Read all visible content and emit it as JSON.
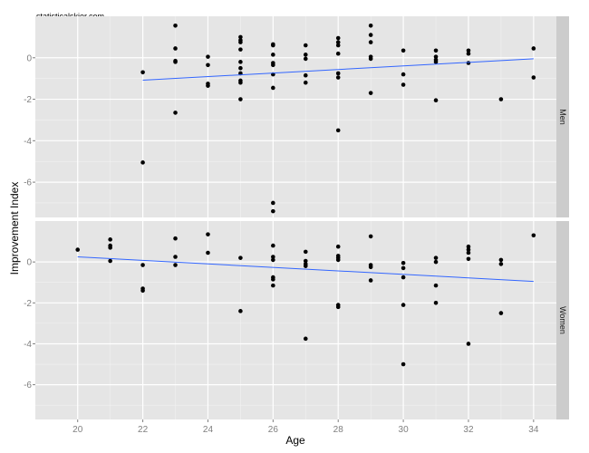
{
  "chart_data": {
    "type": "scatter",
    "credit": "statisticalskier.com",
    "xlabel": "Age",
    "ylabel": "Improvement Index",
    "xlim": [
      18.7,
      34.7
    ],
    "ylim": [
      -7.7,
      2.0
    ],
    "x_ticks": [
      20,
      22,
      24,
      26,
      28,
      30,
      32,
      34
    ],
    "y_ticks": [
      0,
      -2,
      -4,
      -6
    ],
    "grid": true,
    "colors": {
      "panel_bg": "#e5e5e5",
      "grid_major": "#ffffff",
      "grid_minor": "#f2f2f2",
      "strip_bg": "#cccccc",
      "point": "#000000",
      "trend_line": "#3366ff"
    },
    "panels": [
      {
        "label": "Men",
        "points": [
          [
            22,
            -0.7
          ],
          [
            22,
            -5.05
          ],
          [
            23,
            1.55
          ],
          [
            23,
            0.45
          ],
          [
            23,
            -0.15
          ],
          [
            23,
            -0.2
          ],
          [
            23,
            -2.65
          ],
          [
            24,
            0.05
          ],
          [
            24,
            -0.35
          ],
          [
            24,
            -1.25
          ],
          [
            24,
            -1.35
          ],
          [
            25,
            1.0
          ],
          [
            25,
            0.85
          ],
          [
            25,
            0.75
          ],
          [
            25,
            0.4
          ],
          [
            25,
            -0.2
          ],
          [
            25,
            -0.5
          ],
          [
            25,
            -0.75
          ],
          [
            25,
            -1.1
          ],
          [
            25,
            -1.2
          ],
          [
            25,
            -2.0
          ],
          [
            26,
            0.65
          ],
          [
            26,
            0.6
          ],
          [
            26,
            0.15
          ],
          [
            26,
            -0.25
          ],
          [
            26,
            -0.35
          ],
          [
            26,
            -0.8
          ],
          [
            26,
            -1.45
          ],
          [
            26,
            -7.0
          ],
          [
            26,
            -7.4
          ],
          [
            27,
            0.6
          ],
          [
            27,
            0.15
          ],
          [
            27,
            -0.05
          ],
          [
            27,
            -0.85
          ],
          [
            27,
            -1.2
          ],
          [
            28,
            0.95
          ],
          [
            28,
            0.75
          ],
          [
            28,
            0.6
          ],
          [
            28,
            0.2
          ],
          [
            28,
            -0.75
          ],
          [
            28,
            -0.95
          ],
          [
            28,
            -3.5
          ],
          [
            29,
            1.55
          ],
          [
            29,
            1.1
          ],
          [
            29,
            0.75
          ],
          [
            29,
            0.05
          ],
          [
            29,
            -0.05
          ],
          [
            29,
            -1.7
          ],
          [
            30,
            0.35
          ],
          [
            30,
            -0.8
          ],
          [
            30,
            -1.3
          ],
          [
            31,
            0.35
          ],
          [
            31,
            0.05
          ],
          [
            31,
            -0.1
          ],
          [
            31,
            -0.2
          ],
          [
            31,
            -2.05
          ],
          [
            32,
            0.35
          ],
          [
            32,
            0.2
          ],
          [
            32,
            -0.25
          ],
          [
            33,
            -2.0
          ],
          [
            34,
            0.45
          ],
          [
            34,
            -0.95
          ]
        ],
        "trend_line": {
          "x": [
            22,
            34
          ],
          "y": [
            -1.08,
            -0.05
          ]
        }
      },
      {
        "label": "Women",
        "points": [
          [
            20,
            0.6
          ],
          [
            21,
            1.1
          ],
          [
            21,
            0.8
          ],
          [
            21,
            0.7
          ],
          [
            21,
            0.05
          ],
          [
            22,
            -0.15
          ],
          [
            22,
            -1.3
          ],
          [
            22,
            -1.4
          ],
          [
            23,
            1.15
          ],
          [
            23,
            0.25
          ],
          [
            23,
            -0.15
          ],
          [
            24,
            1.35
          ],
          [
            24,
            0.45
          ],
          [
            25,
            0.2
          ],
          [
            25,
            -2.4
          ],
          [
            26,
            0.8
          ],
          [
            26,
            0.25
          ],
          [
            26,
            0.1
          ],
          [
            26,
            -0.75
          ],
          [
            26,
            -0.85
          ],
          [
            26,
            -1.15
          ],
          [
            27,
            0.5
          ],
          [
            27,
            0.05
          ],
          [
            27,
            -0.1
          ],
          [
            27,
            -0.2
          ],
          [
            27,
            -3.75
          ],
          [
            28,
            0.75
          ],
          [
            28,
            0.3
          ],
          [
            28,
            0.2
          ],
          [
            28,
            0.1
          ],
          [
            28,
            -2.1
          ],
          [
            28,
            -2.2
          ],
          [
            29,
            1.25
          ],
          [
            29,
            -0.15
          ],
          [
            29,
            -0.25
          ],
          [
            29,
            -0.9
          ],
          [
            30,
            -0.05
          ],
          [
            30,
            -0.3
          ],
          [
            30,
            -0.75
          ],
          [
            30,
            -2.1
          ],
          [
            30,
            -5.0
          ],
          [
            31,
            0.2
          ],
          [
            31,
            0.0
          ],
          [
            31,
            -1.15
          ],
          [
            31,
            -2.0
          ],
          [
            32,
            0.75
          ],
          [
            32,
            0.6
          ],
          [
            32,
            0.45
          ],
          [
            32,
            0.15
          ],
          [
            32,
            -4.0
          ],
          [
            33,
            0.1
          ],
          [
            33,
            -0.1
          ],
          [
            33,
            -2.5
          ],
          [
            34,
            1.3
          ]
        ],
        "trend_line": {
          "x": [
            20,
            34
          ],
          "y": [
            0.25,
            -0.95
          ]
        }
      }
    ]
  }
}
